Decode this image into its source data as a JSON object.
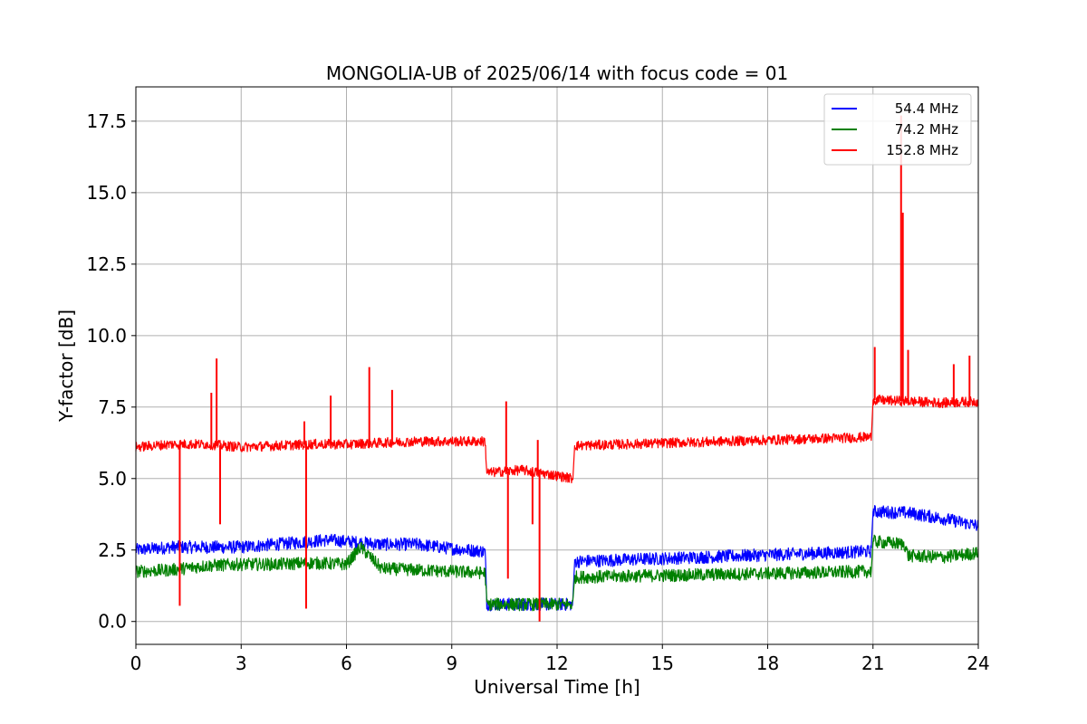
{
  "chart_data": {
    "type": "line",
    "title": "MONGOLIA-UB of 2025/06/14 with focus code = 01",
    "xlabel": "Universal Time [h]",
    "ylabel": "Y-factor [dB]",
    "xlim": [
      0,
      24
    ],
    "ylim": [
      -0.8,
      18.7
    ],
    "xticks": [
      0,
      3,
      6,
      9,
      12,
      15,
      18,
      21,
      24
    ],
    "xtick_labels": [
      "0",
      "3",
      "6",
      "9",
      "12",
      "15",
      "18",
      "21",
      "24"
    ],
    "yticks": [
      0,
      2.5,
      5,
      7.5,
      10,
      12.5,
      15,
      17.5
    ],
    "ytick_labels": [
      "0.0",
      "2.5",
      "5.0",
      "7.5",
      "10.0",
      "12.5",
      "15.0",
      "17.5"
    ],
    "grid": true,
    "legend_position": "top-right",
    "series": [
      {
        "name": "54.4 MHz",
        "color": "#0000ff",
        "noise": 0.45,
        "x": [
          0.0,
          1.0,
          2.0,
          3.0,
          4.0,
          5.0,
          5.5,
          6.0,
          7.0,
          8.0,
          9.0,
          9.95,
          10.0,
          11.0,
          12.0,
          12.45,
          12.5,
          20.95,
          21.0,
          22.0,
          23.0,
          24.0
        ],
        "y": [
          2.5,
          2.6,
          2.6,
          2.6,
          2.7,
          2.8,
          2.85,
          2.8,
          2.7,
          2.7,
          2.55,
          2.45,
          0.6,
          0.6,
          0.6,
          0.6,
          2.1,
          2.45,
          3.85,
          3.8,
          3.6,
          3.35
        ],
        "gaps_after_x": [
          12.45,
          20.95
        ]
      },
      {
        "name": "74.2 MHz",
        "color": "#008000",
        "noise": 0.45,
        "x": [
          0.0,
          1.0,
          2.0,
          3.0,
          4.0,
          5.0,
          6.0,
          6.4,
          7.0,
          8.0,
          9.0,
          9.95,
          10.0,
          11.0,
          12.0,
          12.45,
          12.5,
          20.95,
          21.0,
          21.9,
          22.0,
          23.0,
          24.0
        ],
        "y": [
          1.75,
          1.8,
          1.95,
          2.0,
          2.0,
          2.05,
          2.0,
          2.6,
          1.85,
          1.8,
          1.75,
          1.7,
          0.6,
          0.6,
          0.6,
          0.6,
          1.55,
          1.75,
          2.8,
          2.7,
          2.3,
          2.25,
          2.4
        ],
        "gaps_after_x": [
          12.45,
          20.95
        ]
      },
      {
        "name": "152.8 MHz",
        "color": "#ff0000",
        "noise": 0.35,
        "x": [
          0.0,
          1.0,
          2.0,
          3.0,
          4.0,
          5.0,
          6.0,
          7.0,
          8.0,
          9.0,
          9.95,
          10.0,
          11.0,
          12.0,
          12.45,
          12.5,
          20.95,
          21.0,
          22.0,
          23.0,
          24.0
        ],
        "y": [
          6.1,
          6.2,
          6.2,
          6.1,
          6.15,
          6.2,
          6.2,
          6.25,
          6.3,
          6.3,
          6.3,
          5.2,
          5.3,
          5.1,
          5.0,
          6.15,
          6.45,
          7.75,
          7.7,
          7.65,
          7.7
        ],
        "gaps_after_x": [
          12.45,
          20.95
        ],
        "spikes": [
          {
            "x": 1.25,
            "y": 0.55
          },
          {
            "x": 2.15,
            "y": 8.0
          },
          {
            "x": 2.3,
            "y": 9.2
          },
          {
            "x": 2.4,
            "y": 3.4
          },
          {
            "x": 4.8,
            "y": 7.0
          },
          {
            "x": 4.85,
            "y": 0.45
          },
          {
            "x": 5.55,
            "y": 7.9
          },
          {
            "x": 6.65,
            "y": 8.9
          },
          {
            "x": 7.3,
            "y": 8.1
          },
          {
            "x": 10.55,
            "y": 7.7
          },
          {
            "x": 10.6,
            "y": 1.5
          },
          {
            "x": 11.3,
            "y": 3.4
          },
          {
            "x": 11.45,
            "y": 6.35
          },
          {
            "x": 11.5,
            "y": 0.0
          },
          {
            "x": 21.05,
            "y": 9.6
          },
          {
            "x": 21.8,
            "y": 17.7
          },
          {
            "x": 21.85,
            "y": 14.3
          },
          {
            "x": 22.0,
            "y": 9.5
          },
          {
            "x": 23.3,
            "y": 9.0
          },
          {
            "x": 23.75,
            "y": 9.3
          }
        ]
      }
    ]
  }
}
